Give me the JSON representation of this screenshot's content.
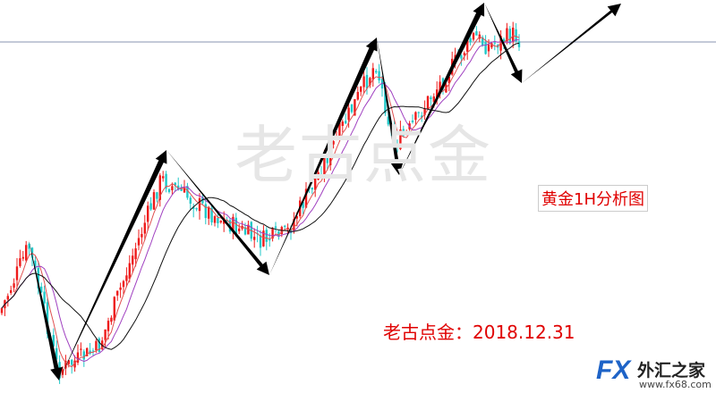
{
  "watermark": "老古点金",
  "chart_label": "黄金1H分析图",
  "author_date": "老古点金：2018.12.31",
  "logo": {
    "mark": "FX",
    "name": "外汇之家",
    "url": "www.fx68.com"
  }
}
